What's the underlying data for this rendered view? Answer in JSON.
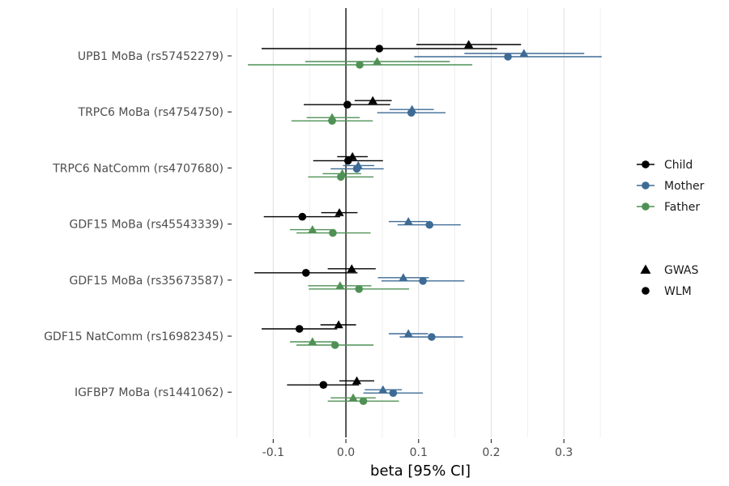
{
  "chart_data": {
    "type": "forest",
    "xlabel": "beta [95% CI]",
    "ylabel": "",
    "xlim": [
      -0.155,
      0.36
    ],
    "x_ticks": [
      -0.1,
      0.0,
      0.1,
      0.2,
      0.3
    ],
    "x_tick_labels": [
      "-0.1",
      "0.0",
      "0.1",
      "0.2",
      "0.3"
    ],
    "grid": true,
    "reference_line": 0,
    "legend_position": "right",
    "legend_groups": [
      {
        "items": [
          {
            "label": "Child",
            "color": "#000000",
            "shape": "circle"
          },
          {
            "label": "Mother",
            "color": "#3e6b96",
            "shape": "circle"
          },
          {
            "label": "Father",
            "color": "#4f9155",
            "shape": "circle"
          }
        ]
      },
      {
        "items": [
          {
            "label": "GWAS",
            "color": "#000000",
            "shape": "triangle"
          },
          {
            "label": "WLM",
            "color": "#000000",
            "shape": "circle"
          }
        ]
      }
    ],
    "series_colors": {
      "Child": "#000000",
      "Mother": "#3e6b96",
      "Father": "#4f9155"
    },
    "categories": [
      "UPB1 MoBa (rs57452279)",
      "TRPC6 MoBa (rs4754750)",
      "TRPC6 NatComm (rs4707680)",
      "GDF15 MoBa (rs45543339)",
      "GDF15 MoBa (rs35673587)",
      "GDF15 NatComm (rs16982345)",
      "IGFBP7 MoBa (rs1441062)"
    ],
    "estimates": [
      {
        "category": 0,
        "series": "Child",
        "method": "GWAS",
        "beta": 0.169,
        "lo": 0.097,
        "hi": 0.241
      },
      {
        "category": 0,
        "series": "Child",
        "method": "WLM",
        "beta": 0.046,
        "lo": -0.116,
        "hi": 0.208
      },
      {
        "category": 0,
        "series": "Mother",
        "method": "GWAS",
        "beta": 0.245,
        "lo": 0.163,
        "hi": 0.328
      },
      {
        "category": 0,
        "series": "Mother",
        "method": "WLM",
        "beta": 0.223,
        "lo": 0.094,
        "hi": 0.352
      },
      {
        "category": 0,
        "series": "Father",
        "method": "GWAS",
        "beta": 0.043,
        "lo": -0.056,
        "hi": 0.143
      },
      {
        "category": 0,
        "series": "Father",
        "method": "WLM",
        "beta": 0.019,
        "lo": -0.135,
        "hi": 0.174
      },
      {
        "category": 1,
        "series": "Child",
        "method": "GWAS",
        "beta": 0.037,
        "lo": 0.012,
        "hi": 0.063
      },
      {
        "category": 1,
        "series": "Child",
        "method": "WLM",
        "beta": 0.002,
        "lo": -0.058,
        "hi": 0.061
      },
      {
        "category": 1,
        "series": "Mother",
        "method": "GWAS",
        "beta": 0.091,
        "lo": 0.06,
        "hi": 0.121
      },
      {
        "category": 1,
        "series": "Mother",
        "method": "WLM",
        "beta": 0.09,
        "lo": 0.043,
        "hi": 0.137
      },
      {
        "category": 1,
        "series": "Father",
        "method": "GWAS",
        "beta": -0.019,
        "lo": -0.054,
        "hi": 0.019
      },
      {
        "category": 1,
        "series": "Father",
        "method": "WLM",
        "beta": -0.019,
        "lo": -0.075,
        "hi": 0.037
      },
      {
        "category": 2,
        "series": "Child",
        "method": "GWAS",
        "beta": 0.009,
        "lo": -0.012,
        "hi": 0.03
      },
      {
        "category": 2,
        "series": "Child",
        "method": "WLM",
        "beta": 0.003,
        "lo": -0.045,
        "hi": 0.051
      },
      {
        "category": 2,
        "series": "Mother",
        "method": "GWAS",
        "beta": 0.017,
        "lo": -0.004,
        "hi": 0.039
      },
      {
        "category": 2,
        "series": "Mother",
        "method": "WLM",
        "beta": 0.015,
        "lo": -0.021,
        "hi": 0.052
      },
      {
        "category": 2,
        "series": "Father",
        "method": "GWAS",
        "beta": -0.005,
        "lo": -0.032,
        "hi": 0.021
      },
      {
        "category": 2,
        "series": "Father",
        "method": "WLM",
        "beta": -0.007,
        "lo": -0.052,
        "hi": 0.038
      },
      {
        "category": 3,
        "series": "Child",
        "method": "GWAS",
        "beta": -0.009,
        "lo": -0.034,
        "hi": 0.016
      },
      {
        "category": 3,
        "series": "Child",
        "method": "WLM",
        "beta": -0.06,
        "lo": -0.113,
        "hi": -0.008
      },
      {
        "category": 3,
        "series": "Mother",
        "method": "GWAS",
        "beta": 0.086,
        "lo": 0.059,
        "hi": 0.113
      },
      {
        "category": 3,
        "series": "Mother",
        "method": "WLM",
        "beta": 0.115,
        "lo": 0.071,
        "hi": 0.158
      },
      {
        "category": 3,
        "series": "Father",
        "method": "GWAS",
        "beta": -0.046,
        "lo": -0.077,
        "hi": -0.015
      },
      {
        "category": 3,
        "series": "Father",
        "method": "WLM",
        "beta": -0.018,
        "lo": -0.068,
        "hi": 0.034
      },
      {
        "category": 4,
        "series": "Child",
        "method": "GWAS",
        "beta": 0.008,
        "lo": -0.025,
        "hi": 0.041
      },
      {
        "category": 4,
        "series": "Child",
        "method": "WLM",
        "beta": -0.055,
        "lo": -0.126,
        "hi": 0.016
      },
      {
        "category": 4,
        "series": "Mother",
        "method": "GWAS",
        "beta": 0.079,
        "lo": 0.044,
        "hi": 0.114
      },
      {
        "category": 4,
        "series": "Mother",
        "method": "WLM",
        "beta": 0.106,
        "lo": 0.049,
        "hi": 0.163
      },
      {
        "category": 4,
        "series": "Father",
        "method": "GWAS",
        "beta": -0.008,
        "lo": -0.052,
        "hi": 0.035
      },
      {
        "category": 4,
        "series": "Father",
        "method": "WLM",
        "beta": 0.018,
        "lo": -0.051,
        "hi": 0.087
      },
      {
        "category": 5,
        "series": "Child",
        "method": "GWAS",
        "beta": -0.01,
        "lo": -0.035,
        "hi": 0.014
      },
      {
        "category": 5,
        "series": "Child",
        "method": "WLM",
        "beta": -0.064,
        "lo": -0.116,
        "hi": -0.012
      },
      {
        "category": 5,
        "series": "Mother",
        "method": "GWAS",
        "beta": 0.086,
        "lo": 0.059,
        "hi": 0.113
      },
      {
        "category": 5,
        "series": "Mother",
        "method": "WLM",
        "beta": 0.118,
        "lo": 0.074,
        "hi": 0.161
      },
      {
        "category": 5,
        "series": "Father",
        "method": "GWAS",
        "beta": -0.046,
        "lo": -0.077,
        "hi": -0.015
      },
      {
        "category": 5,
        "series": "Father",
        "method": "WLM",
        "beta": -0.015,
        "lo": -0.068,
        "hi": 0.038
      },
      {
        "category": 6,
        "series": "Child",
        "method": "GWAS",
        "beta": 0.015,
        "lo": -0.009,
        "hi": 0.039
      },
      {
        "category": 6,
        "series": "Child",
        "method": "WLM",
        "beta": -0.031,
        "lo": -0.081,
        "hi": 0.018
      },
      {
        "category": 6,
        "series": "Mother",
        "method": "GWAS",
        "beta": 0.051,
        "lo": 0.026,
        "hi": 0.077
      },
      {
        "category": 6,
        "series": "Mother",
        "method": "WLM",
        "beta": 0.065,
        "lo": 0.024,
        "hi": 0.106
      },
      {
        "category": 6,
        "series": "Father",
        "method": "GWAS",
        "beta": 0.01,
        "lo": -0.021,
        "hi": 0.041
      },
      {
        "category": 6,
        "series": "Father",
        "method": "WLM",
        "beta": 0.024,
        "lo": -0.025,
        "hi": 0.073
      }
    ]
  }
}
